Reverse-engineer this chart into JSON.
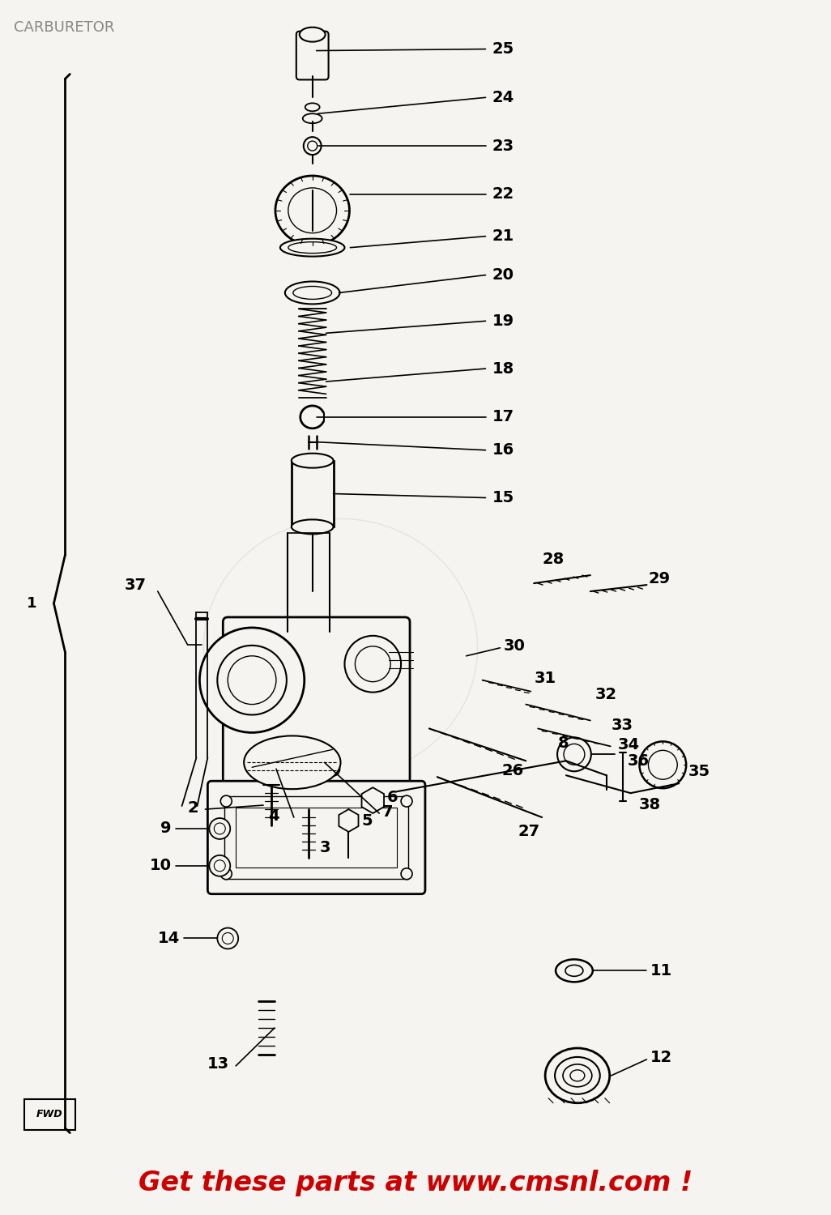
{
  "title": "CARBURETOR",
  "background_color": "#f5f4f0",
  "fig_width": 10.26,
  "fig_height": 15.0,
  "watermark_text": "Get these parts at www.cmsnl.com !",
  "watermark_color": "#cc0000",
  "watermark_fontsize": 24
}
